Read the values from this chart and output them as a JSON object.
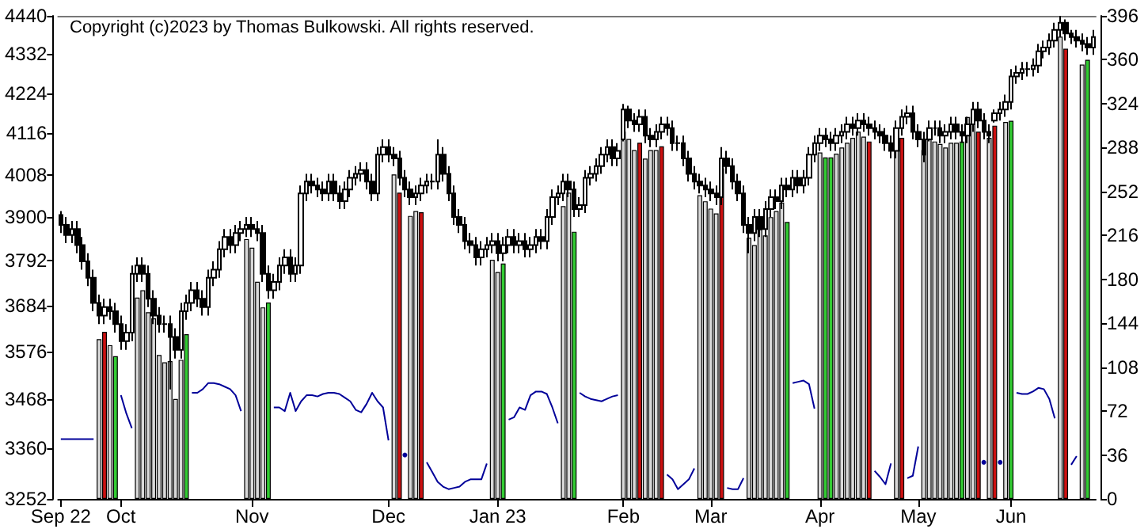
{
  "chart_data": {
    "type": "candlestick",
    "annotations": [
      "Copyright (c)2023 by Thomas Bulkowski. All rights reserved."
    ],
    "categories": [
      "Sep 22",
      null,
      null,
      null,
      null,
      null,
      null,
      null,
      null,
      null,
      null,
      "Oct",
      null,
      null,
      null,
      null,
      null,
      null,
      null,
      null,
      null,
      null,
      null,
      null,
      null,
      null,
      null,
      null,
      null,
      null,
      null,
      null,
      null,
      null,
      null,
      "Nov",
      null,
      null,
      null,
      null,
      null,
      null,
      null,
      null,
      null,
      null,
      null,
      null,
      null,
      null,
      null,
      null,
      null,
      null,
      null,
      null,
      null,
      null,
      null,
      null,
      "Dec",
      null,
      null,
      null,
      null,
      null,
      null,
      null,
      null,
      null,
      null,
      null,
      null,
      null,
      null,
      null,
      null,
      null,
      null,
      null,
      "Jan 23",
      null,
      null,
      null,
      null,
      null,
      null,
      null,
      null,
      null,
      null,
      null,
      null,
      null,
      null,
      null,
      null,
      null,
      null,
      null,
      null,
      null,
      null,
      "Feb",
      null,
      null,
      null,
      null,
      null,
      null,
      null,
      null,
      null,
      null,
      null,
      null,
      null,
      null,
      null,
      "Mar",
      null,
      null,
      null,
      null,
      null,
      null,
      null,
      null,
      null,
      null,
      null,
      null,
      null,
      null,
      null,
      null,
      null,
      null,
      null,
      "Apr",
      null,
      null,
      null,
      null,
      null,
      null,
      null,
      null,
      null,
      null,
      null,
      null,
      null,
      null,
      null,
      null,
      null,
      "May",
      null,
      null,
      null,
      null,
      null,
      null,
      null,
      null,
      null,
      null,
      null,
      null,
      null,
      null,
      null,
      null,
      "Jun",
      null,
      null,
      null,
      null,
      null,
      null,
      null,
      null,
      null,
      null,
      null,
      null,
      null,
      null,
      null
    ],
    "ohlc": [
      [
        3905,
        3915,
        3860,
        3880
      ],
      [
        3880,
        3900,
        3835,
        3855
      ],
      [
        3855,
        3890,
        3835,
        3870
      ],
      [
        3870,
        3890,
        3810,
        3830
      ],
      [
        3830,
        3850,
        3770,
        3790
      ],
      [
        3790,
        3810,
        3730,
        3750
      ],
      [
        3750,
        3770,
        3670,
        3690
      ],
      [
        3690,
        3710,
        3640,
        3660
      ],
      [
        3660,
        3700,
        3640,
        3680
      ],
      [
        3680,
        3700,
        3650,
        3670
      ],
      [
        3670,
        3690,
        3620,
        3640
      ],
      [
        3640,
        3660,
        3580,
        3600
      ],
      [
        3600,
        3640,
        3580,
        3620
      ],
      [
        3620,
        3780,
        3600,
        3760
      ],
      [
        3760,
        3800,
        3740,
        3780
      ],
      [
        3780,
        3800,
        3740,
        3760
      ],
      [
        3760,
        3780,
        3680,
        3700
      ],
      [
        3700,
        3720,
        3640,
        3660
      ],
      [
        3660,
        3680,
        3620,
        3640
      ],
      [
        3640,
        3660,
        3620,
        3640
      ],
      [
        3640,
        3660,
        3490,
        3610
      ],
      [
        3610,
        3630,
        3560,
        3580
      ],
      [
        3580,
        3690,
        3560,
        3670
      ],
      [
        3670,
        3710,
        3650,
        3690
      ],
      [
        3690,
        3740,
        3670,
        3720
      ],
      [
        3720,
        3740,
        3680,
        3700
      ],
      [
        3700,
        3720,
        3660,
        3680
      ],
      [
        3680,
        3770,
        3660,
        3750
      ],
      [
        3750,
        3790,
        3730,
        3770
      ],
      [
        3770,
        3840,
        3750,
        3820
      ],
      [
        3820,
        3870,
        3800,
        3850
      ],
      [
        3850,
        3870,
        3810,
        3830
      ],
      [
        3830,
        3880,
        3810,
        3860
      ],
      [
        3860,
        3890,
        3840,
        3870
      ],
      [
        3870,
        3900,
        3850,
        3880
      ],
      [
        3880,
        3900,
        3850,
        3870
      ],
      [
        3870,
        3890,
        3840,
        3860
      ],
      [
        3860,
        3880,
        3740,
        3760
      ],
      [
        3760,
        3780,
        3700,
        3720
      ],
      [
        3720,
        3760,
        3700,
        3740
      ],
      [
        3740,
        3800,
        3720,
        3780
      ],
      [
        3780,
        3820,
        3760,
        3800
      ],
      [
        3800,
        3820,
        3740,
        3760
      ],
      [
        3760,
        3800,
        3740,
        3780
      ],
      [
        3780,
        3980,
        3760,
        3960
      ],
      [
        3960,
        4010,
        3940,
        3990
      ],
      [
        3990,
        4010,
        3960,
        3980
      ],
      [
        3980,
        4000,
        3950,
        3970
      ],
      [
        3970,
        3990,
        3940,
        3960
      ],
      [
        3960,
        4010,
        3940,
        3990
      ],
      [
        3990,
        4010,
        3940,
        3960
      ],
      [
        3960,
        3980,
        3920,
        3940
      ],
      [
        3940,
        3990,
        3920,
        3970
      ],
      [
        3970,
        4020,
        3950,
        4000
      ],
      [
        4000,
        4030,
        3980,
        4010
      ],
      [
        4010,
        4040,
        3990,
        4020
      ],
      [
        4020,
        4040,
        3970,
        3990
      ],
      [
        3990,
        4010,
        3940,
        3960
      ],
      [
        3960,
        4080,
        3940,
        4060
      ],
      [
        4060,
        4100,
        4040,
        4080
      ],
      [
        4080,
        4100,
        4040,
        4060
      ],
      [
        4060,
        4080,
        4030,
        4050
      ],
      [
        4050,
        4070,
        3980,
        4000
      ],
      [
        4000,
        4020,
        3950,
        3970
      ],
      [
        3970,
        3990,
        3930,
        3950
      ],
      [
        3950,
        3980,
        3930,
        3960
      ],
      [
        3960,
        4000,
        3940,
        3980
      ],
      [
        3980,
        4010,
        3960,
        3990
      ],
      [
        3990,
        4010,
        3970,
        3990
      ],
      [
        3990,
        4100,
        3970,
        4060
      ],
      [
        4060,
        4080,
        3990,
        4010
      ],
      [
        4010,
        4030,
        3940,
        3960
      ],
      [
        3960,
        3980,
        3880,
        3900
      ],
      [
        3900,
        3920,
        3860,
        3880
      ],
      [
        3880,
        3900,
        3820,
        3840
      ],
      [
        3840,
        3860,
        3810,
        3830
      ],
      [
        3830,
        3850,
        3780,
        3800
      ],
      [
        3800,
        3840,
        3780,
        3820
      ],
      [
        3820,
        3850,
        3800,
        3830
      ],
      [
        3830,
        3860,
        3810,
        3840
      ],
      [
        3840,
        3860,
        3790,
        3810
      ],
      [
        3810,
        3850,
        3790,
        3830
      ],
      [
        3830,
        3870,
        3810,
        3850
      ],
      [
        3850,
        3870,
        3810,
        3830
      ],
      [
        3830,
        3860,
        3810,
        3840
      ],
      [
        3840,
        3860,
        3800,
        3820
      ],
      [
        3820,
        3850,
        3800,
        3830
      ],
      [
        3830,
        3870,
        3810,
        3850
      ],
      [
        3850,
        3870,
        3820,
        3840
      ],
      [
        3840,
        3920,
        3820,
        3900
      ],
      [
        3900,
        3970,
        3880,
        3950
      ],
      [
        3950,
        3980,
        3930,
        3960
      ],
      [
        3960,
        4010,
        3940,
        3990
      ],
      [
        3990,
        4010,
        3950,
        3970
      ],
      [
        3970,
        3990,
        3900,
        3920
      ],
      [
        3920,
        3950,
        3900,
        3930
      ],
      [
        3930,
        4020,
        3910,
        4000
      ],
      [
        4000,
        4030,
        3980,
        4010
      ],
      [
        4010,
        4050,
        3990,
        4030
      ],
      [
        4030,
        4080,
        4010,
        4060
      ],
      [
        4060,
        4100,
        4040,
        4080
      ],
      [
        4080,
        4100,
        4030,
        4050
      ],
      [
        4050,
        4090,
        4030,
        4070
      ],
      [
        4100,
        4195,
        4095,
        4180
      ],
      [
        4180,
        4190,
        4130,
        4150
      ],
      [
        4150,
        4170,
        4120,
        4140
      ],
      [
        4140,
        4180,
        4120,
        4160
      ],
      [
        4160,
        4180,
        4090,
        4110
      ],
      [
        4110,
        4130,
        4080,
        4100
      ],
      [
        4100,
        4140,
        4080,
        4120
      ],
      [
        4120,
        4160,
        4100,
        4140
      ],
      [
        4140,
        4160,
        4110,
        4130
      ],
      [
        4130,
        4150,
        4070,
        4090
      ],
      [
        4090,
        4110,
        4070,
        4090
      ],
      [
        4090,
        4110,
        4030,
        4050
      ],
      [
        4050,
        4070,
        3990,
        4010
      ],
      [
        4010,
        4030,
        3970,
        3990
      ],
      [
        3990,
        4010,
        3960,
        3980
      ],
      [
        3980,
        4000,
        3950,
        3970
      ],
      [
        3970,
        3990,
        3940,
        3960
      ],
      [
        3960,
        3980,
        3930,
        3950
      ],
      [
        3950,
        4080,
        3930,
        4050
      ],
      [
        4050,
        4070,
        4010,
        4030
      ],
      [
        4030,
        4050,
        3970,
        3990
      ],
      [
        3990,
        4010,
        3940,
        3960
      ],
      [
        3960,
        3980,
        3860,
        3880
      ],
      [
        3880,
        3900,
        3810,
        3860
      ],
      [
        3860,
        3920,
        3840,
        3900
      ],
      [
        3900,
        3920,
        3850,
        3870
      ],
      [
        3870,
        3940,
        3850,
        3920
      ],
      [
        3920,
        3970,
        3900,
        3950
      ],
      [
        3950,
        3970,
        3920,
        3940
      ],
      [
        3940,
        4000,
        3920,
        3980
      ],
      [
        3980,
        4000,
        3950,
        3970
      ],
      [
        3970,
        4020,
        3950,
        4000
      ],
      [
        4000,
        4020,
        3960,
        3980
      ],
      [
        3980,
        4020,
        3960,
        4000
      ],
      [
        4000,
        4080,
        3980,
        4060
      ],
      [
        4060,
        4110,
        4040,
        4090
      ],
      [
        4090,
        4130,
        4070,
        4110
      ],
      [
        4110,
        4130,
        4080,
        4100
      ],
      [
        4100,
        4120,
        4070,
        4090
      ],
      [
        4090,
        4130,
        4070,
        4110
      ],
      [
        4110,
        4140,
        4090,
        4120
      ],
      [
        4120,
        4160,
        4100,
        4140
      ],
      [
        4140,
        4160,
        4110,
        4130
      ],
      [
        4130,
        4170,
        4110,
        4150
      ],
      [
        4150,
        4170,
        4120,
        4140
      ],
      [
        4140,
        4160,
        4110,
        4130
      ],
      [
        4130,
        4150,
        4100,
        4120
      ],
      [
        4120,
        4140,
        4090,
        4110
      ],
      [
        4110,
        4130,
        4070,
        4090
      ],
      [
        4090,
        4110,
        4050,
        4070
      ],
      [
        4070,
        4150,
        4050,
        4130
      ],
      [
        4130,
        4180,
        4110,
        4160
      ],
      [
        4160,
        4190,
        4140,
        4170
      ],
      [
        4170,
        4190,
        4100,
        4120
      ],
      [
        4120,
        4140,
        4080,
        4100
      ],
      [
        4100,
        4120,
        4040,
        4060
      ],
      [
        4100,
        4150,
        4095,
        4130
      ],
      [
        4130,
        4150,
        4110,
        4130
      ],
      [
        4130,
        4150,
        4090,
        4110
      ],
      [
        4110,
        4140,
        4090,
        4120
      ],
      [
        4120,
        4160,
        4100,
        4140
      ],
      [
        4140,
        4160,
        4100,
        4120
      ],
      [
        4120,
        4140,
        4090,
        4110
      ],
      [
        4110,
        4160,
        4090,
        4140
      ],
      [
        4140,
        4200,
        4120,
        4180
      ],
      [
        4180,
        4200,
        4130,
        4150
      ],
      [
        4150,
        4170,
        4100,
        4120
      ],
      [
        4120,
        4140,
        4090,
        4110
      ],
      [
        4150,
        4180,
        4145,
        4170
      ],
      [
        4170,
        4200,
        4150,
        4180
      ],
      [
        4180,
        4220,
        4160,
        4200
      ],
      [
        4200,
        4290,
        4180,
        4270
      ],
      [
        4270,
        4300,
        4250,
        4280
      ],
      [
        4280,
        4310,
        4260,
        4290
      ],
      [
        4290,
        4310,
        4270,
        4290
      ],
      [
        4290,
        4320,
        4270,
        4300
      ],
      [
        4300,
        4360,
        4280,
        4340
      ],
      [
        4340,
        4370,
        4320,
        4350
      ],
      [
        4350,
        4390,
        4330,
        4370
      ],
      [
        4370,
        4420,
        4350,
        4400
      ],
      [
        4400,
        4440,
        4380,
        4420
      ],
      [
        4420,
        4430,
        4370,
        4390
      ],
      [
        4390,
        4400,
        4360,
        4380
      ],
      [
        4380,
        4400,
        4350,
        4370
      ],
      [
        4370,
        4390,
        4340,
        4360
      ],
      [
        4360,
        4380,
        4330,
        4350
      ],
      [
        4350,
        4400,
        4330,
        4380
      ]
    ],
    "series": [
      {
        "type": "bar",
        "axis": "y2",
        "values": [
          null,
          null,
          null,
          null,
          null,
          null,
          null,
          131,
          137,
          126,
          117,
          null,
          null,
          null,
          165,
          171,
          153,
          148,
          118,
          112,
          113,
          82,
          114,
          135,
          null,
          null,
          null,
          null,
          null,
          null,
          null,
          null,
          null,
          null,
          213,
          206,
          178,
          157,
          161,
          null,
          null,
          null,
          null,
          null,
          null,
          null,
          null,
          null,
          null,
          null,
          null,
          null,
          null,
          null,
          null,
          null,
          null,
          null,
          null,
          null,
          null,
          266,
          251,
          null,
          232,
          236,
          235,
          null,
          null,
          null,
          null,
          null,
          null,
          null,
          null,
          null,
          null,
          null,
          null,
          196,
          186,
          193,
          null,
          null,
          null,
          null,
          null,
          null,
          null,
          null,
          null,
          null,
          240,
          251,
          219,
          null,
          null,
          null,
          null,
          null,
          null,
          null,
          null,
          301,
          295,
          286,
          292,
          279,
          286,
          286,
          289,
          null,
          null,
          null,
          null,
          null,
          null,
          249,
          244,
          238,
          234,
          271,
          null,
          null,
          null,
          null,
          214,
          208,
          221,
          216,
          231,
          236,
          243,
          227,
          null,
          null,
          null,
          null,
          null,
          284,
          280,
          280,
          283,
          288,
          292,
          296,
          301,
          297,
          293,
          null,
          null,
          null,
          null,
          288,
          296,
          null,
          null,
          null,
          286,
          296,
          293,
          291,
          288,
          292,
          292,
          293,
          313,
          313,
          301,
          null,
          296,
          306,
          null,
          309,
          310,
          null,
          null,
          null,
          null,
          null,
          null,
          null,
          null,
          379,
          369,
          null,
          null,
          356,
          360,
          null
        ],
        "colors": [
          null,
          null,
          null,
          null,
          null,
          null,
          null,
          "#d9d9d9",
          "#cc1111",
          "#d9d9d9",
          "#33cc33",
          null,
          null,
          null,
          "#d9d9d9",
          "#d9d9d9",
          "#d9d9d9",
          "#d9d9d9",
          "#d9d9d9",
          "#d9d9d9",
          "#d9d9d9",
          "#d9d9d9",
          "#d9d9d9",
          "#33cc33",
          null,
          null,
          null,
          null,
          null,
          null,
          null,
          null,
          null,
          null,
          "#d9d9d9",
          "#d9d9d9",
          "#d9d9d9",
          "#d9d9d9",
          "#33cc33",
          null,
          null,
          null,
          null,
          null,
          null,
          null,
          null,
          null,
          null,
          null,
          null,
          null,
          null,
          null,
          null,
          null,
          null,
          null,
          null,
          null,
          null,
          "#d9d9d9",
          "#cc1111",
          null,
          "#d9d9d9",
          "#d9d9d9",
          "#cc1111",
          null,
          null,
          null,
          null,
          null,
          null,
          null,
          null,
          null,
          null,
          null,
          null,
          "#d9d9d9",
          "#d9d9d9",
          "#33cc33",
          null,
          null,
          null,
          null,
          null,
          null,
          null,
          null,
          null,
          null,
          "#d9d9d9",
          "#d9d9d9",
          "#33cc33",
          null,
          null,
          null,
          null,
          null,
          null,
          null,
          null,
          "#d9d9d9",
          "#d9d9d9",
          "#d9d9d9",
          "#cc1111",
          "#d9d9d9",
          "#d9d9d9",
          "#d9d9d9",
          "#cc1111",
          null,
          null,
          null,
          null,
          null,
          null,
          "#d9d9d9",
          "#d9d9d9",
          "#d9d9d9",
          "#d9d9d9",
          "#cc1111",
          null,
          null,
          null,
          null,
          "#d9d9d9",
          "#d9d9d9",
          "#d9d9d9",
          "#d9d9d9",
          "#d9d9d9",
          "#d9d9d9",
          "#d9d9d9",
          "#33cc33",
          null,
          null,
          null,
          null,
          null,
          "#d9d9d9",
          "#33cc33",
          "#33cc33",
          "#d9d9d9",
          "#d9d9d9",
          "#d9d9d9",
          "#d9d9d9",
          "#d9d9d9",
          "#d9d9d9",
          "#cc1111",
          null,
          null,
          null,
          null,
          "#d9d9d9",
          "#cc1111",
          null,
          null,
          null,
          "#d9d9d9",
          "#d9d9d9",
          "#d9d9d9",
          "#d9d9d9",
          "#d9d9d9",
          "#d9d9d9",
          "#d9d9d9",
          "#33cc33",
          "#d9d9d9",
          "#d9d9d9",
          "#cc1111",
          null,
          "#d9d9d9",
          "#cc1111",
          null,
          "#d9d9d9",
          "#33cc33",
          null,
          null,
          null,
          null,
          null,
          null,
          null,
          null,
          "#d9d9d9",
          "#cc1111",
          null,
          null,
          "#d9d9d9",
          "#33cc33",
          null
        ]
      },
      {
        "type": "line",
        "axis": "y2",
        "color": "#000099",
        "values": [
          49,
          49,
          49,
          49,
          49,
          49,
          49,
          null,
          null,
          null,
          null,
          85,
          70,
          58,
          null,
          null,
          null,
          null,
          null,
          null,
          null,
          null,
          null,
          null,
          87,
          87,
          90,
          95,
          95,
          94,
          92,
          90,
          85,
          72,
          null,
          null,
          null,
          null,
          null,
          75,
          75,
          72,
          87,
          72,
          80,
          85,
          85,
          84,
          86,
          87,
          87,
          86,
          83,
          80,
          73,
          71,
          78,
          87,
          80,
          75,
          48,
          null,
          null,
          36,
          null,
          null,
          null,
          30,
          22,
          14,
          10,
          8,
          9,
          10,
          14,
          16,
          16,
          16,
          29,
          null,
          null,
          null,
          65,
          67,
          75,
          73,
          85,
          88,
          88,
          86,
          75,
          62,
          null,
          null,
          null,
          87,
          84,
          82,
          81,
          80,
          82,
          84,
          85,
          null,
          null,
          null,
          null,
          null,
          null,
          null,
          null,
          20,
          16,
          8,
          12,
          16,
          25,
          null,
          null,
          null,
          null,
          null,
          9,
          8,
          8,
          17,
          null,
          null,
          null,
          null,
          null,
          null,
          null,
          null,
          95,
          96,
          97,
          94,
          74,
          null,
          null,
          null,
          null,
          null,
          null,
          null,
          null,
          null,
          null,
          23,
          18,
          12,
          29,
          null,
          null,
          17,
          19,
          43,
          null,
          null,
          null,
          null,
          null,
          null,
          null,
          null,
          null,
          null,
          null,
          30,
          null,
          null,
          30,
          null,
          null,
          87,
          86,
          86,
          88,
          91,
          90,
          82,
          66,
          null,
          null,
          28,
          35,
          null,
          null,
          null
        ]
      }
    ],
    "log": "y",
    "ylim": [
      3252,
      4440
    ],
    "yticks": [
      3252,
      3360,
      3468,
      3576,
      3684,
      3792,
      3900,
      4008,
      4116,
      4224,
      4332,
      4440
    ],
    "y2lim": [
      0,
      396
    ],
    "y2ticks": [
      0,
      36,
      72,
      108,
      144,
      180,
      216,
      252,
      288,
      324,
      360,
      396
    ]
  }
}
